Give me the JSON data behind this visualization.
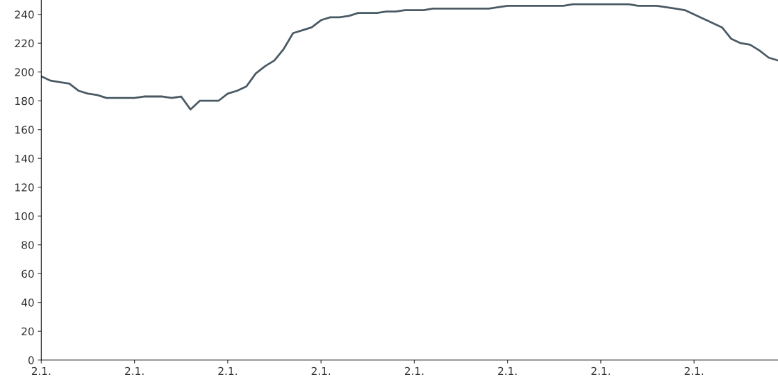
{
  "chart_data": {
    "type": "line",
    "categories": [
      "2.1.",
      null,
      null,
      null,
      null,
      null,
      null,
      null,
      null,
      null,
      "2.1.",
      null,
      null,
      null,
      null,
      null,
      null,
      null,
      null,
      null,
      "2.1.",
      null,
      null,
      null,
      null,
      null,
      null,
      null,
      null,
      null,
      "2.1.",
      null,
      null,
      null,
      null,
      null,
      null,
      null,
      null,
      null,
      "2.1.",
      null,
      null,
      null,
      null,
      null,
      null,
      null,
      null,
      null,
      "2.1.",
      null,
      null,
      null,
      null,
      null,
      null,
      null,
      null,
      null,
      "2.1.",
      null,
      null,
      null,
      null,
      null,
      null,
      null,
      null,
      null,
      "2.1.",
      null,
      null,
      null,
      null,
      null,
      null,
      null,
      null,
      null
    ],
    "series": [
      {
        "color": "#4a5a64",
        "values": [
          197,
          194,
          193,
          192,
          187,
          185,
          184,
          182,
          182,
          182,
          182,
          183,
          183,
          183,
          182,
          183,
          174,
          180,
          180,
          180,
          185,
          187,
          190,
          199,
          204,
          208,
          216,
          227,
          229,
          231,
          236,
          238,
          238,
          239,
          241,
          241,
          241,
          242,
          242,
          243,
          243,
          243,
          244,
          244,
          244,
          244,
          244,
          244,
          244,
          245,
          246,
          246,
          246,
          246,
          246,
          246,
          246,
          247,
          247,
          247,
          247,
          247,
          247,
          247,
          246,
          246,
          246,
          245,
          244,
          243,
          240,
          237,
          234,
          231,
          223,
          220,
          219,
          215,
          210,
          208
        ]
      }
    ],
    "ylim": [
      0,
      250
    ],
    "yticks": [
      0,
      20,
      40,
      60,
      80,
      100,
      120,
      140,
      160,
      180,
      200,
      220,
      240
    ],
    "grid": false,
    "legend": false,
    "marker": "none",
    "line_style": "solid"
  }
}
